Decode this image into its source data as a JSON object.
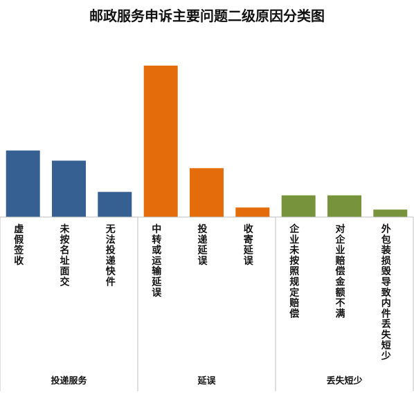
{
  "chart_data": {
    "type": "bar",
    "title": "邮政服务申诉主要问题二级原因分类图",
    "categories": [
      "虚假签收",
      "未按名址面交",
      "无法投递快件",
      "中转或运输延误",
      "投递延误",
      "收寄延误",
      "企业未按照规定赔偿",
      "对企业赔偿金额不满",
      "外包装损毁导致内件丢失短少"
    ],
    "values": [
      98,
      83,
      37,
      223,
      72,
      14,
      32,
      32,
      11
    ],
    "colors": [
      "#376092",
      "#376092",
      "#376092",
      "#E46C0A",
      "#E46C0A",
      "#E46C0A",
      "#77933C",
      "#77933C",
      "#77933C"
    ],
    "groups": [
      {
        "label": "投递服务",
        "span": [
          0,
          2
        ]
      },
      {
        "label": "延误",
        "span": [
          3,
          5
        ]
      },
      {
        "label": "丢失短少",
        "span": [
          6,
          8
        ]
      }
    ],
    "ylim": [
      0,
      230
    ],
    "grid": false,
    "legend": "none"
  }
}
